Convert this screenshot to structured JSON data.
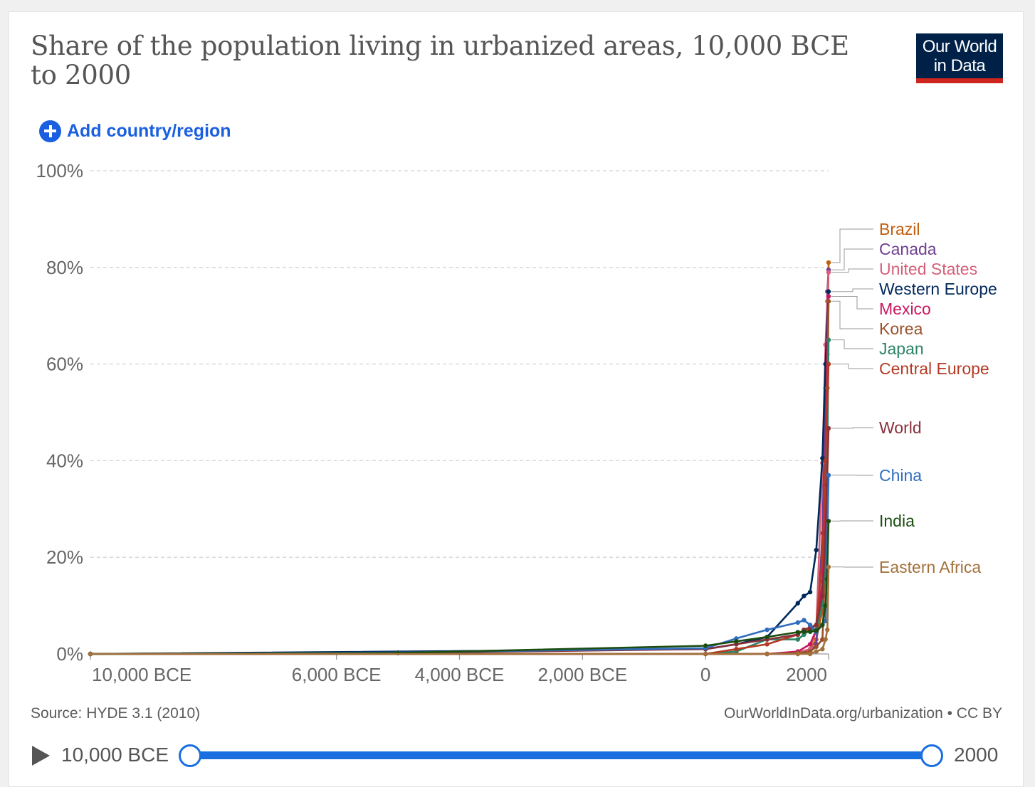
{
  "header": {
    "title": "Share of the population living in urbanized areas, 10,000 BCE to 2000",
    "logo_line1": "Our World",
    "logo_line2": "in Data"
  },
  "controls": {
    "add_label": "Add country/region"
  },
  "footer": {
    "source": "Source: HYDE 3.1 (2010)",
    "attribution": "OurWorldInData.org/urbanization • CC BY"
  },
  "timeline": {
    "start_label": "10,000 BCE",
    "end_label": "2000"
  },
  "chart_data": {
    "type": "line",
    "title": "Share of the population living in urbanized areas, 10,000 BCE to 2000",
    "xlim": [
      -10000,
      2000
    ],
    "ylim": [
      0,
      100
    ],
    "x_ticks": [
      {
        "value": -10000,
        "label": "10,000 BCE"
      },
      {
        "value": -6000,
        "label": "6,000 BCE"
      },
      {
        "value": -4000,
        "label": "4,000 BCE"
      },
      {
        "value": -2000,
        "label": "2,000 BCE"
      },
      {
        "value": 0,
        "label": "0"
      },
      {
        "value": 2000,
        "label": "2000"
      }
    ],
    "y_ticks": [
      {
        "value": 0,
        "label": "0%"
      },
      {
        "value": 20,
        "label": "20%"
      },
      {
        "value": 40,
        "label": "40%"
      },
      {
        "value": 60,
        "label": "60%"
      },
      {
        "value": 80,
        "label": "80%"
      },
      {
        "value": 100,
        "label": "100%"
      }
    ],
    "grid": "horizontal",
    "legend": "right",
    "series": [
      {
        "name": "Brazil",
        "color": "#c15f0e",
        "x": [
          -10000,
          0,
          1000,
          1500,
          1700,
          1800,
          1900,
          1950,
          1980,
          2000
        ],
        "y": [
          0,
          0,
          0,
          0.3,
          1,
          3,
          9,
          30,
          62,
          81
        ]
      },
      {
        "name": "Canada",
        "color": "#6d3e91",
        "x": [
          -10000,
          0,
          1000,
          1500,
          1700,
          1800,
          1900,
          1950,
          1980,
          2000
        ],
        "y": [
          0,
          0,
          0,
          0,
          0.5,
          2,
          25,
          55,
          75,
          79.5
        ]
      },
      {
        "name": "United States",
        "color": "#d55f78",
        "x": [
          -10000,
          0,
          1000,
          1500,
          1700,
          1800,
          1900,
          1950,
          1980,
          2000
        ],
        "y": [
          0,
          0,
          0,
          0.3,
          1,
          5,
          39.5,
          64,
          73,
          79
        ]
      },
      {
        "name": "Western Europe",
        "color": "#00295b",
        "x": [
          -10000,
          0,
          500,
          1000,
          1500,
          1600,
          1700,
          1800,
          1900,
          1950,
          2000
        ],
        "y": [
          0,
          1,
          2,
          3.5,
          10.5,
          12,
          12.8,
          21.5,
          40.5,
          60,
          75
        ]
      },
      {
        "name": "Mexico",
        "color": "#c8175e",
        "x": [
          -10000,
          0,
          1000,
          1500,
          1700,
          1800,
          1900,
          1950,
          1980,
          2000
        ],
        "y": [
          0,
          0,
          0,
          0.5,
          2,
          5,
          15,
          40,
          65,
          74
        ]
      },
      {
        "name": "Korea",
        "color": "#9a5129",
        "x": [
          -10000,
          0,
          1000,
          1500,
          1700,
          1800,
          1900,
          1950,
          1980,
          2000
        ],
        "y": [
          0,
          0,
          0,
          0.2,
          0.5,
          1.5,
          3,
          20,
          55,
          73
        ]
      },
      {
        "name": "Japan",
        "color": "#2c8465",
        "x": [
          -10000,
          0,
          500,
          1000,
          1500,
          1600,
          1700,
          1800,
          1900,
          1950,
          1975,
          2000
        ],
        "y": [
          0,
          0,
          0.5,
          3,
          3,
          4,
          5,
          5,
          10,
          21,
          35,
          65
        ]
      },
      {
        "name": "Central Europe",
        "color": "#b53a24",
        "x": [
          -10000,
          0,
          500,
          1000,
          1500,
          1600,
          1700,
          1800,
          1900,
          1950,
          2000
        ],
        "y": [
          0,
          0,
          1,
          2,
          4,
          5,
          5,
          6,
          20,
          40,
          60
        ]
      },
      {
        "name": "World",
        "color": "#883039",
        "x": [
          -10000,
          -5000,
          0,
          500,
          1000,
          1500,
          1600,
          1700,
          1800,
          1900,
          1950,
          1975,
          2000
        ],
        "y": [
          0,
          0.2,
          1,
          2,
          3,
          4,
          5,
          5.5,
          6,
          12,
          25,
          35,
          46.7
        ]
      },
      {
        "name": "China",
        "color": "#2f6ebf",
        "x": [
          -10000,
          -5000,
          0,
          500,
          1000,
          1500,
          1600,
          1700,
          1800,
          1900,
          1950,
          2000
        ],
        "y": [
          0,
          0.3,
          1.2,
          3.2,
          5,
          6.5,
          7,
          6,
          4.5,
          6,
          6.8,
          37
        ]
      },
      {
        "name": "India",
        "color": "#1b4d10",
        "x": [
          -10000,
          -5000,
          0,
          500,
          1000,
          1500,
          1600,
          1700,
          1800,
          1900,
          1950,
          1975,
          2000
        ],
        "y": [
          0,
          0.2,
          1.7,
          2.6,
          3.5,
          4.5,
          4.6,
          4.6,
          4.8,
          6,
          10,
          15.5,
          27.5
        ]
      },
      {
        "name": "Eastern Africa",
        "color": "#a2713b",
        "x": [
          -10000,
          0,
          1000,
          1500,
          1700,
          1800,
          1900,
          1950,
          1980,
          2000
        ],
        "y": [
          0,
          0,
          0,
          0,
          0,
          0.5,
          1,
          3,
          5,
          18
        ]
      }
    ]
  }
}
